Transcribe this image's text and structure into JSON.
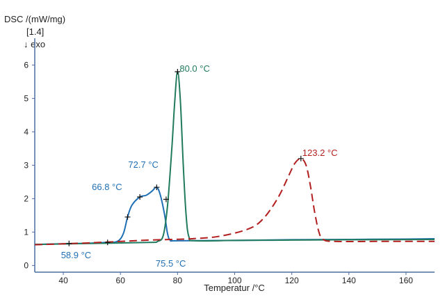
{
  "chart_data": {
    "type": "line",
    "ylabel": "DSC /(mW/mg)",
    "curve_id": "[1.4]",
    "direction_label": "↓ exo",
    "xlabel": "Temperatur /°C",
    "xlim": [
      30,
      170
    ],
    "ylim": [
      -0.2,
      6.8
    ],
    "x_ticks": [
      40,
      60,
      80,
      100,
      120,
      140,
      160
    ],
    "y_ticks": [
      0,
      1,
      2,
      3,
      4,
      5,
      6
    ],
    "grid": false,
    "colors": {
      "blue": "#1f6fb5",
      "green": "#1f7a5e",
      "red": "#b31e1e",
      "axis": "#4a6fa0"
    },
    "series": [
      {
        "color": "#1f6fb5",
        "dash": "solid",
        "points": [
          [
            30,
            0.63
          ],
          [
            40,
            0.65
          ],
          [
            50,
            0.67
          ],
          [
            55,
            0.69
          ],
          [
            58.9,
            0.72
          ],
          [
            61,
            0.95
          ],
          [
            62.5,
            1.45
          ],
          [
            64,
            1.8
          ],
          [
            66.8,
            2.05
          ],
          [
            69,
            2.1
          ],
          [
            71,
            2.22
          ],
          [
            72.7,
            2.34
          ],
          [
            74,
            2.1
          ],
          [
            75.5,
            1.5
          ],
          [
            76.5,
            0.95
          ],
          [
            77.5,
            0.75
          ],
          [
            80,
            0.74
          ],
          [
            100,
            0.75
          ],
          [
            120,
            0.77
          ],
          [
            140,
            0.78
          ],
          [
            160,
            0.79
          ],
          [
            170,
            0.8
          ]
        ]
      },
      {
        "color": "#1f7a5e",
        "dash": "solid",
        "points": [
          [
            30,
            0.63
          ],
          [
            50,
            0.66
          ],
          [
            70,
            0.69
          ],
          [
            73,
            0.72
          ],
          [
            75,
            0.9
          ],
          [
            76.5,
            1.8
          ],
          [
            78,
            3.5
          ],
          [
            79,
            4.9
          ],
          [
            80,
            5.8
          ],
          [
            81,
            4.9
          ],
          [
            82,
            3.0
          ],
          [
            83,
            1.5
          ],
          [
            84,
            0.85
          ],
          [
            86,
            0.74
          ],
          [
            100,
            0.75
          ],
          [
            120,
            0.76
          ],
          [
            140,
            0.77
          ],
          [
            170,
            0.78
          ]
        ]
      },
      {
        "color": "#b31e1e",
        "dash": "dashed",
        "points": [
          [
            30,
            0.62
          ],
          [
            50,
            0.68
          ],
          [
            70,
            0.76
          ],
          [
            85,
            0.8
          ],
          [
            95,
            0.88
          ],
          [
            105,
            1.1
          ],
          [
            110,
            1.4
          ],
          [
            115,
            2.0
          ],
          [
            119,
            2.7
          ],
          [
            121,
            3.05
          ],
          [
            123.2,
            3.2
          ],
          [
            125,
            3.0
          ],
          [
            126.5,
            2.4
          ],
          [
            128,
            1.6
          ],
          [
            129.5,
            1.0
          ],
          [
            131,
            0.78
          ],
          [
            135,
            0.72
          ],
          [
            150,
            0.72
          ],
          [
            170,
            0.72
          ]
        ]
      }
    ],
    "annotations": [
      {
        "text": "80.0 °C",
        "x": 80.0,
        "y": 5.8,
        "color": "#1f7a5e"
      },
      {
        "text": "123.2 °C",
        "x": 123.2,
        "y": 3.2,
        "color": "#b31e1e"
      },
      {
        "text": "72.7 °C",
        "x": 72.7,
        "y": 2.34,
        "color": "#1f6fb5"
      },
      {
        "text": "66.8 °C",
        "x": 66.8,
        "y": 2.05,
        "color": "#1f6fb5"
      },
      {
        "text": "58.9 °C",
        "x": 58.9,
        "y": 0.72,
        "color": "#1f6fb5"
      },
      {
        "text": "75.5 °C",
        "x": 75.5,
        "y": 0.72,
        "color": "#1f6fb5"
      }
    ],
    "markers": [
      [
        80.0,
        5.8
      ],
      [
        123.2,
        3.2
      ],
      [
        72.7,
        2.34
      ],
      [
        66.8,
        2.05
      ],
      [
        62.5,
        1.45
      ],
      [
        42,
        0.66
      ],
      [
        55.5,
        0.69
      ],
      [
        76,
        1.98
      ]
    ]
  }
}
